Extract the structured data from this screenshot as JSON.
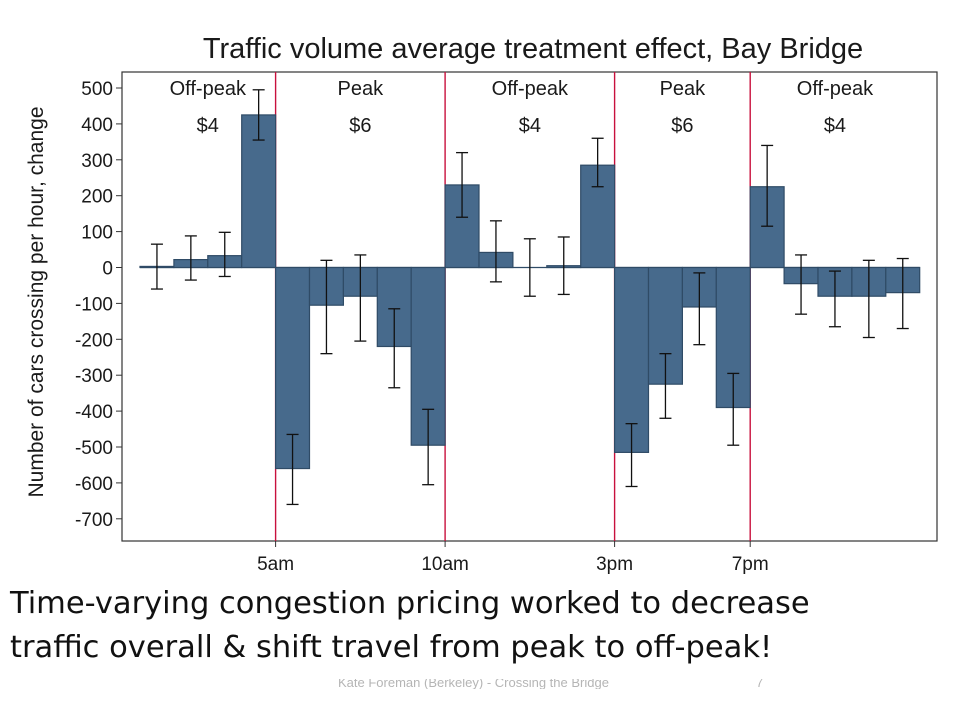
{
  "chart_data": {
    "type": "bar",
    "title": "Traffic volume average treatment effect, Bay Bridge",
    "ylabel": "Number of cars crossing per hour, change",
    "xlabel": "",
    "ylim": [
      -700,
      500
    ],
    "yticks": [
      500,
      400,
      300,
      200,
      100,
      0,
      -100,
      -200,
      -300,
      -400,
      -500,
      -600,
      -700
    ],
    "xlim": [
      0,
      23
    ],
    "xticks": [
      {
        "label": "5am",
        "pos": 4
      },
      {
        "label": "10am",
        "pos": 9
      },
      {
        "label": "3pm",
        "pos": 14
      },
      {
        "label": "7pm",
        "pos": 18
      }
    ],
    "period_boundaries": [
      4,
      9,
      14,
      18
    ],
    "periods": [
      {
        "label": "Off-peak",
        "price": "$4"
      },
      {
        "label": "Peak",
        "price": "$6"
      },
      {
        "label": "Off-peak",
        "price": "$4"
      },
      {
        "label": "Peak",
        "price": "$6"
      },
      {
        "label": "Off-peak",
        "price": "$4"
      }
    ],
    "hours": [
      0,
      1,
      2,
      3,
      4,
      5,
      6,
      7,
      8,
      9,
      10,
      11,
      12,
      13,
      14,
      15,
      16,
      17,
      18,
      19,
      20,
      21,
      22
    ],
    "values": [
      3,
      22,
      33,
      425,
      -560,
      -105,
      -80,
      -220,
      -495,
      230,
      42,
      0,
      5,
      285,
      -515,
      -325,
      -110,
      -390,
      225,
      -45,
      -80,
      -80,
      -70
    ],
    "ci_low": [
      -60,
      -35,
      -25,
      355,
      -660,
      -240,
      -205,
      -335,
      -605,
      140,
      -40,
      -80,
      -75,
      225,
      -610,
      -420,
      -215,
      -495,
      115,
      -130,
      -165,
      -195,
      -170
    ],
    "ci_high": [
      65,
      88,
      98,
      495,
      -465,
      20,
      35,
      -115,
      -395,
      320,
      130,
      80,
      85,
      360,
      -435,
      -240,
      -15,
      -295,
      340,
      35,
      -10,
      20,
      25
    ],
    "bar_color": "#476a8c",
    "bar_edge_color": "#2f4b66",
    "boundary_color": "#c8103d",
    "grid": false,
    "legend": "none"
  },
  "caption": {
    "line1": "Time-varying congestion pricing worked to decrease",
    "line2": "traffic overall & shift travel from peak to off-peak!"
  },
  "footer": {
    "text": "Kate Foreman (Berkeley) - Crossing the Bridge",
    "page": "7"
  }
}
